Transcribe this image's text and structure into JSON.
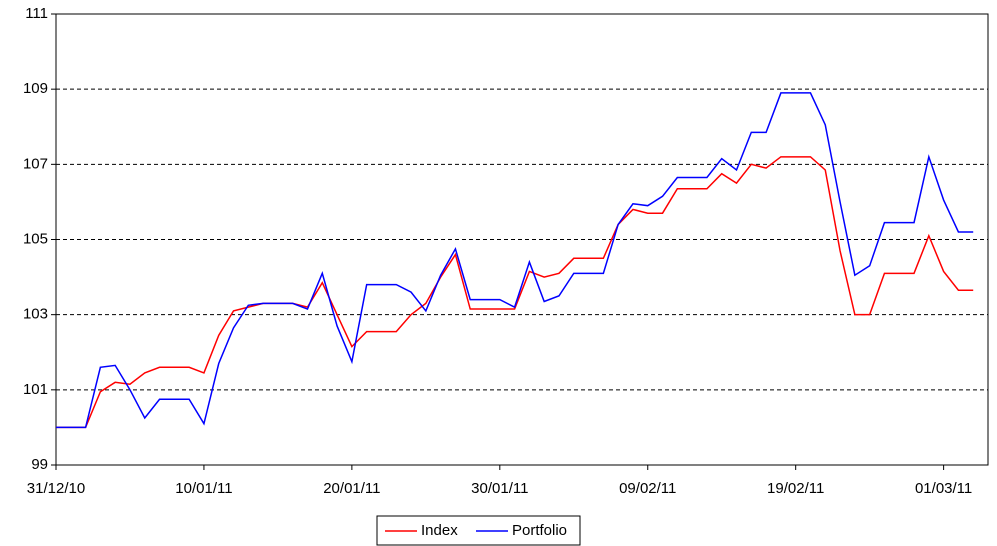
{
  "chart_data": {
    "type": "line",
    "x": [
      "2010-12-31",
      "2011-01-01",
      "2011-01-02",
      "2011-01-03",
      "2011-01-04",
      "2011-01-05",
      "2011-01-06",
      "2011-01-07",
      "2011-01-08",
      "2011-01-09",
      "2011-01-10",
      "2011-01-11",
      "2011-01-12",
      "2011-01-13",
      "2011-01-14",
      "2011-01-15",
      "2011-01-16",
      "2011-01-17",
      "2011-01-18",
      "2011-01-19",
      "2011-01-20",
      "2011-01-21",
      "2011-01-22",
      "2011-01-23",
      "2011-01-24",
      "2011-01-25",
      "2011-01-26",
      "2011-01-27",
      "2011-01-28",
      "2011-01-29",
      "2011-01-30",
      "2011-01-31",
      "2011-02-01",
      "2011-02-02",
      "2011-02-03",
      "2011-02-04",
      "2011-02-05",
      "2011-02-06",
      "2011-02-07",
      "2011-02-08",
      "2011-02-09",
      "2011-02-10",
      "2011-02-11",
      "2011-02-12",
      "2011-02-13",
      "2011-02-14",
      "2011-02-15",
      "2011-02-16",
      "2011-02-17",
      "2011-02-18",
      "2011-02-19",
      "2011-02-20",
      "2011-02-21",
      "2011-02-22",
      "2011-02-23",
      "2011-02-24",
      "2011-02-25",
      "2011-02-26",
      "2011-02-27",
      "2011-02-28",
      "2011-03-01",
      "2011-03-02",
      "2011-03-03"
    ],
    "series": [
      {
        "name": "Index",
        "color": "#ff0000",
        "values": [
          100,
          100,
          100,
          100.95,
          101.2,
          101.15,
          101.45,
          101.6,
          101.6,
          101.6,
          101.45,
          102.45,
          103.1,
          103.2,
          103.3,
          103.3,
          103.3,
          103.2,
          103.85,
          103.0,
          102.15,
          102.55,
          102.55,
          102.55,
          103.0,
          103.3,
          104.0,
          104.6,
          103.15,
          103.15,
          103.15,
          103.15,
          104.15,
          104.0,
          104.1,
          104.5,
          104.5,
          104.5,
          105.4,
          105.8,
          105.7,
          105.7,
          106.35,
          106.35,
          106.35,
          106.75,
          106.5,
          107.0,
          106.9,
          107.2,
          107.2,
          107.2,
          106.85,
          104.7,
          103.0,
          103.0,
          104.1,
          104.1,
          104.1,
          105.1,
          104.15,
          103.65,
          103.65
        ]
      },
      {
        "name": "Portfolio",
        "color": "#0000ff",
        "values": [
          100,
          100,
          100,
          101.6,
          101.65,
          101.0,
          100.25,
          100.75,
          100.75,
          100.75,
          100.1,
          101.7,
          102.65,
          103.25,
          103.3,
          103.3,
          103.3,
          103.15,
          104.1,
          102.7,
          101.75,
          103.8,
          103.8,
          103.8,
          103.6,
          103.1,
          104.05,
          104.75,
          103.4,
          103.4,
          103.4,
          103.2,
          104.4,
          103.35,
          103.5,
          104.1,
          104.1,
          104.1,
          105.4,
          105.95,
          105.9,
          106.15,
          106.65,
          106.65,
          106.65,
          107.15,
          106.85,
          107.85,
          107.85,
          108.9,
          108.9,
          108.9,
          108.05,
          106.0,
          104.05,
          104.3,
          105.45,
          105.45,
          105.45,
          107.2,
          106.05,
          105.2,
          105.2
        ]
      }
    ],
    "xlim": [
      "2010-12-31",
      "2011-03-04"
    ],
    "xticks": [
      {
        "value": "2010-12-31",
        "label": "31/12/10"
      },
      {
        "value": "2011-01-10",
        "label": "10/01/11"
      },
      {
        "value": "2011-01-20",
        "label": "20/01/11"
      },
      {
        "value": "2011-01-30",
        "label": "30/01/11"
      },
      {
        "value": "2011-02-09",
        "label": "09/02/11"
      },
      {
        "value": "2011-02-19",
        "label": "19/02/11"
      },
      {
        "value": "2011-03-01",
        "label": "01/03/11"
      }
    ],
    "ylim": [
      99,
      111
    ],
    "yticks": [
      99,
      101,
      103,
      105,
      107,
      109,
      111
    ],
    "grid": true,
    "legend": "bottom"
  }
}
